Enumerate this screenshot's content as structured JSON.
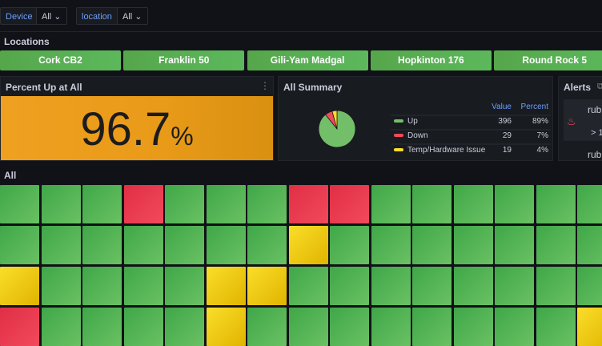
{
  "variables": [
    {
      "label": "Device",
      "value": "All"
    },
    {
      "label": "location",
      "value": "All"
    }
  ],
  "locations": {
    "title": "Locations",
    "buttons": [
      "Cork CB2",
      "Franklin 50",
      "Gili-Yam Madgal",
      "Hopkinton 176",
      "Round Rock 5"
    ]
  },
  "percent_panel": {
    "title": "Percent Up at All",
    "value": 96.7,
    "unit": "%"
  },
  "summary": {
    "title": "All Summary",
    "columns": [
      "Value",
      "Percent"
    ],
    "rows": [
      {
        "name": "Up",
        "color": "#73bf69",
        "value": 396,
        "percent": "89%"
      },
      {
        "name": "Down",
        "color": "#f2495c",
        "value": 29,
        "percent": "7%"
      },
      {
        "name": "Temp/Hardware Issue",
        "color": "#fade2a",
        "value": 19,
        "percent": "4%"
      }
    ]
  },
  "alerts": {
    "title": "Alerts",
    "items": [
      "rub",
      "> 1",
      "rub"
    ]
  },
  "all": {
    "title": "All"
  }
}
